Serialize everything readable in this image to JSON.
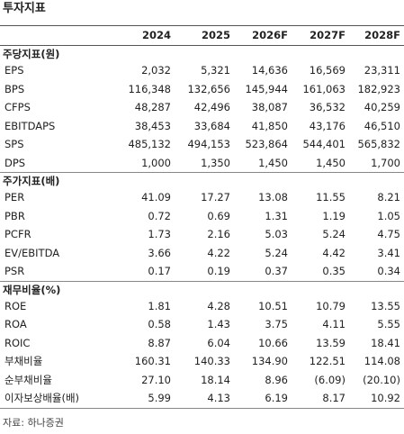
{
  "title": "투자지표",
  "table": {
    "columns": [
      "2024",
      "2025",
      "2026F",
      "2027F",
      "2028F"
    ],
    "sections": [
      {
        "title": "주당지표(원)",
        "rows": [
          {
            "label": "EPS",
            "values": [
              "2,032",
              "5,321",
              "14,636",
              "16,569",
              "23,311"
            ]
          },
          {
            "label": "BPS",
            "values": [
              "116,348",
              "132,656",
              "145,944",
              "161,063",
              "182,923"
            ]
          },
          {
            "label": "CFPS",
            "values": [
              "48,287",
              "42,496",
              "38,087",
              "36,532",
              "40,259"
            ]
          },
          {
            "label": "EBITDAPS",
            "values": [
              "38,453",
              "33,684",
              "41,850",
              "43,176",
              "46,510"
            ]
          },
          {
            "label": "SPS",
            "values": [
              "485,132",
              "494,153",
              "523,864",
              "544,401",
              "565,832"
            ]
          },
          {
            "label": "DPS",
            "values": [
              "1,000",
              "1,350",
              "1,450",
              "1,450",
              "1,700"
            ]
          }
        ]
      },
      {
        "title": "주가지표(배)",
        "rows": [
          {
            "label": "PER",
            "values": [
              "41.09",
              "17.27",
              "13.08",
              "11.55",
              "8.21"
            ]
          },
          {
            "label": "PBR",
            "values": [
              "0.72",
              "0.69",
              "1.31",
              "1.19",
              "1.05"
            ]
          },
          {
            "label": "PCFR",
            "values": [
              "1.73",
              "2.16",
              "5.03",
              "5.24",
              "4.75"
            ]
          },
          {
            "label": "EV/EBITDA",
            "values": [
              "3.66",
              "4.22",
              "5.24",
              "4.42",
              "3.41"
            ]
          },
          {
            "label": "PSR",
            "values": [
              "0.17",
              "0.19",
              "0.37",
              "0.35",
              "0.34"
            ]
          }
        ]
      },
      {
        "title": "재무비율(%)",
        "rows": [
          {
            "label": "ROE",
            "values": [
              "1.81",
              "4.28",
              "10.51",
              "10.79",
              "13.55"
            ]
          },
          {
            "label": "ROA",
            "values": [
              "0.58",
              "1.43",
              "3.75",
              "4.11",
              "5.55"
            ]
          },
          {
            "label": "ROIC",
            "values": [
              "8.87",
              "6.04",
              "10.66",
              "13.59",
              "18.41"
            ]
          },
          {
            "label": "부채비율",
            "values": [
              "160.31",
              "140.33",
              "134.90",
              "122.51",
              "114.08"
            ]
          },
          {
            "label": "순부채비율",
            "values": [
              "27.10",
              "18.14",
              "8.96",
              "(6.09)",
              "(20.10)"
            ]
          },
          {
            "label": "이자보상배율(배)",
            "values": [
              "5.99",
              "4.13",
              "6.19",
              "8.17",
              "10.92"
            ]
          }
        ]
      }
    ]
  },
  "source": "자료: 하나증권"
}
